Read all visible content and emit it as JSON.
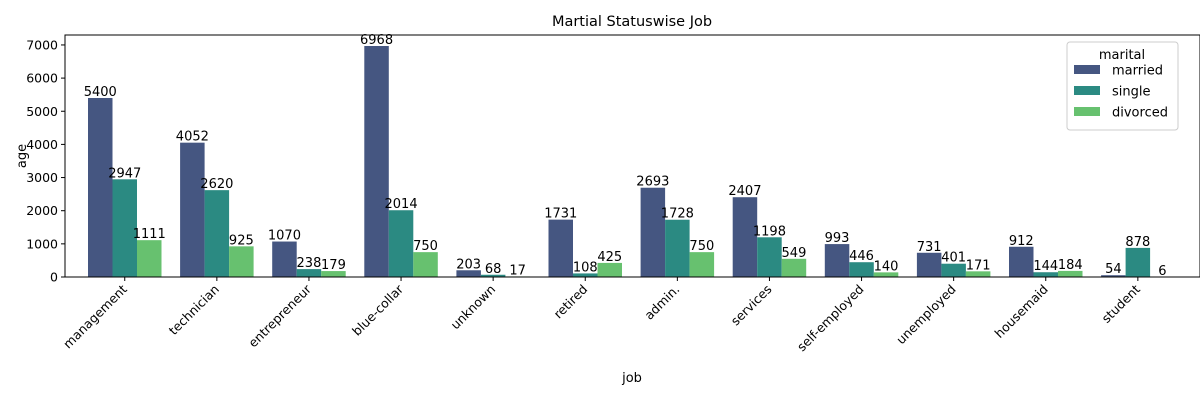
{
  "chart_data": {
    "type": "bar",
    "title": "Martial Statuswise Job",
    "xlabel": "job",
    "ylabel": "age",
    "ylim": [
      0,
      7300
    ],
    "yticks": [
      0,
      1000,
      2000,
      3000,
      4000,
      5000,
      6000,
      7000
    ],
    "categories": [
      "management",
      "technician",
      "entrepreneur",
      "blue-collar",
      "unknown",
      "retired",
      "admin.",
      "services",
      "self-employed",
      "unemployed",
      "housemaid",
      "student"
    ],
    "legend": {
      "title": "marital",
      "position": "top-right"
    },
    "grid": false,
    "series": [
      {
        "name": "married",
        "color": "#455681",
        "values": [
          5400,
          4052,
          1070,
          6968,
          203,
          1731,
          2693,
          2407,
          993,
          731,
          912,
          54
        ]
      },
      {
        "name": "single",
        "color": "#2b8a82",
        "values": [
          2947,
          2620,
          238,
          2014,
          68,
          108,
          1728,
          1198,
          446,
          401,
          144,
          878
        ]
      },
      {
        "name": "divorced",
        "color": "#67c16f",
        "values": [
          1111,
          925,
          179,
          750,
          17,
          425,
          750,
          549,
          140,
          171,
          184,
          6
        ]
      }
    ]
  }
}
